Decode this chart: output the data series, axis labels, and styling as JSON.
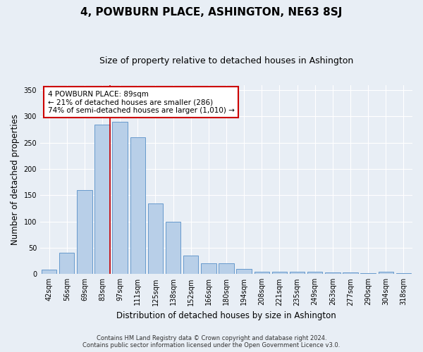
{
  "title": "4, POWBURN PLACE, ASHINGTON, NE63 8SJ",
  "subtitle": "Size of property relative to detached houses in Ashington",
  "xlabel": "Distribution of detached houses by size in Ashington",
  "ylabel": "Number of detached properties",
  "categories": [
    "42sqm",
    "56sqm",
    "69sqm",
    "83sqm",
    "97sqm",
    "111sqm",
    "125sqm",
    "138sqm",
    "152sqm",
    "166sqm",
    "180sqm",
    "194sqm",
    "208sqm",
    "221sqm",
    "235sqm",
    "249sqm",
    "263sqm",
    "277sqm",
    "290sqm",
    "304sqm",
    "318sqm"
  ],
  "values": [
    8,
    40,
    160,
    285,
    290,
    260,
    135,
    100,
    35,
    20,
    20,
    10,
    5,
    5,
    4,
    4,
    3,
    3,
    2,
    5,
    2
  ],
  "bar_color": "#b8cfe8",
  "bar_edge_color": "#6699cc",
  "annotation_text": "4 POWBURN PLACE: 89sqm\n← 21% of detached houses are smaller (286)\n74% of semi-detached houses are larger (1,010) →",
  "annotation_box_color": "#ffffff",
  "annotation_box_edge": "#cc0000",
  "red_line_x": 3.43,
  "ylim": [
    0,
    360
  ],
  "yticks": [
    0,
    50,
    100,
    150,
    200,
    250,
    300,
    350
  ],
  "footer_line1": "Contains HM Land Registry data © Crown copyright and database right 2024.",
  "footer_line2": "Contains public sector information licensed under the Open Government Licence v3.0.",
  "bg_color": "#e8eef5",
  "plot_bg_color": "#e8eef5",
  "grid_color": "#ffffff",
  "title_fontsize": 11,
  "subtitle_fontsize": 9,
  "axis_label_fontsize": 8.5,
  "tick_fontsize": 7,
  "annotation_fontsize": 7.5,
  "footer_fontsize": 6
}
